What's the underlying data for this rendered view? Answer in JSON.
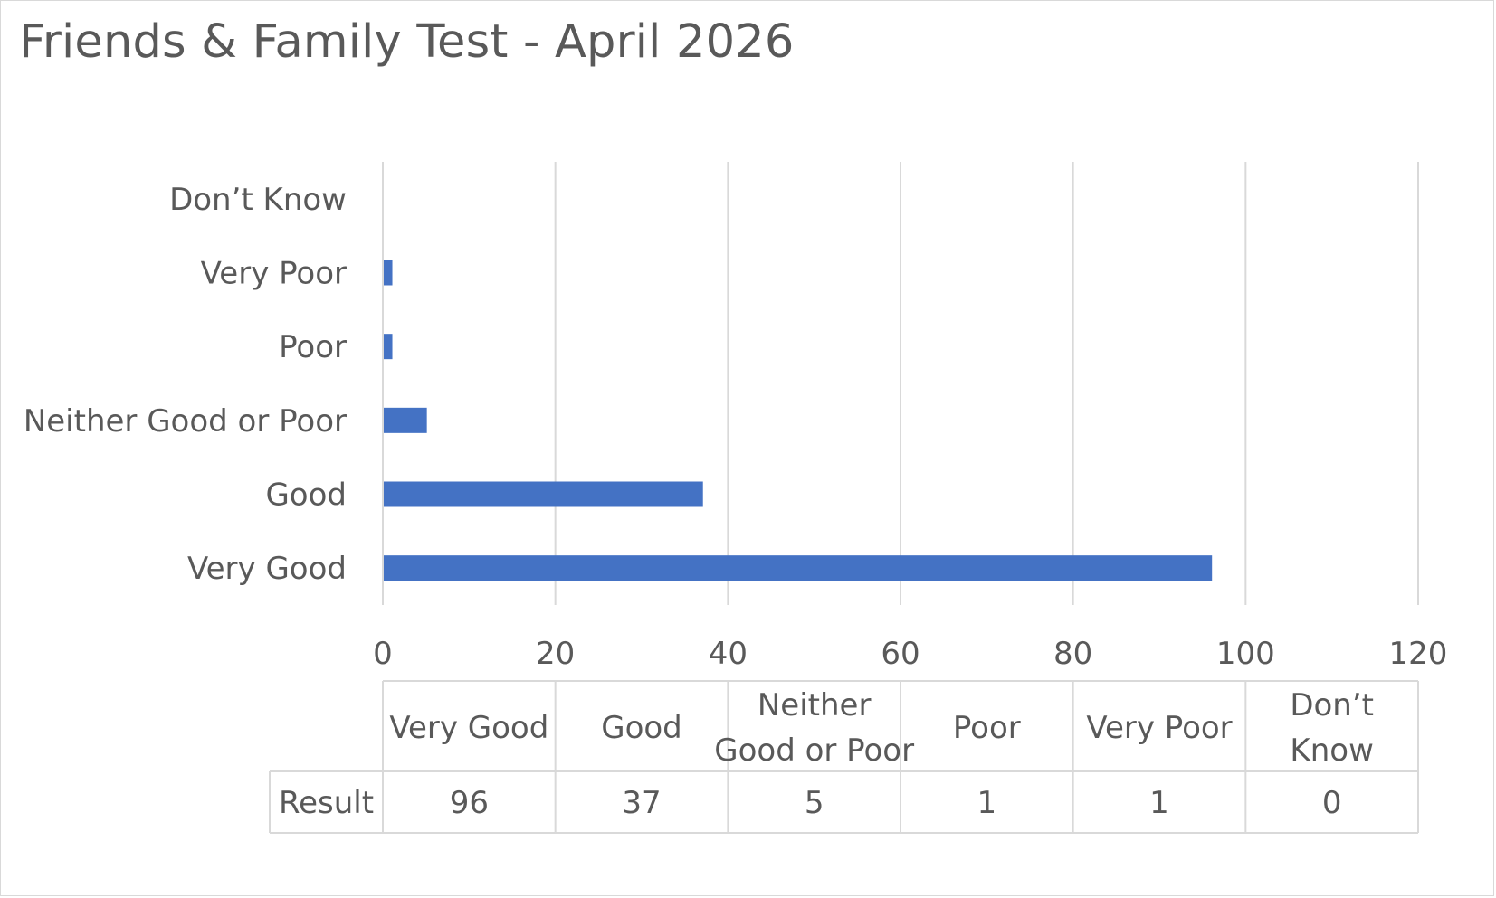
{
  "chart_data": {
    "type": "bar",
    "orientation": "horizontal",
    "title": "Friends & Family Test - April 2026",
    "categories": [
      "Very Good",
      "Good",
      "Neither Good or Poor",
      "Poor",
      "Very Poor",
      "Don’t Know"
    ],
    "series": [
      {
        "name": "Result",
        "values": [
          96,
          37,
          5,
          1,
          1,
          0
        ],
        "color": "#4472c4"
      }
    ],
    "xlim": [
      0,
      120
    ],
    "x_ticks": [
      0,
      20,
      40,
      60,
      80,
      100,
      120
    ],
    "grid": true,
    "data_table": {
      "headers": [
        "Very Good",
        "Good",
        "Neither Good or Poor",
        "Poor",
        "Very Poor",
        "Don’t Know"
      ],
      "row_label": "Result",
      "values": [
        "96",
        "37",
        "5",
        "1",
        "1",
        "0"
      ]
    }
  }
}
